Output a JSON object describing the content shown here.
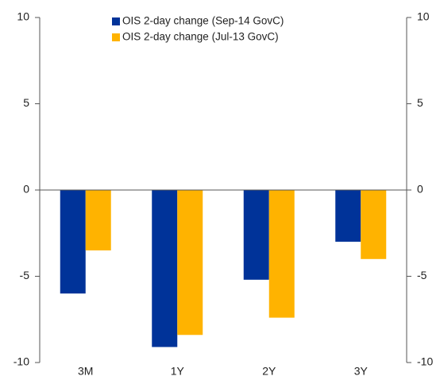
{
  "chart_data": {
    "type": "bar",
    "categories": [
      "3M",
      "1Y",
      "2Y",
      "3Y"
    ],
    "series": [
      {
        "name": "OIS 2-day change (Sep-14 GovC)",
        "color": "#003399",
        "values": [
          -6,
          -9.1,
          -5.2,
          -3
        ]
      },
      {
        "name": "OIS 2-day change (Jul-13 GovC)",
        "color": "#ffb300",
        "values": [
          -3.5,
          -8.4,
          -7.4,
          -4
        ]
      }
    ],
    "ylim": [
      -10,
      10
    ],
    "yticks": [
      -10,
      -5,
      0,
      5,
      10
    ],
    "y2lim": [
      -10,
      10
    ],
    "y2ticks": [
      -10,
      -5,
      0,
      5,
      10
    ],
    "legend": "top"
  }
}
